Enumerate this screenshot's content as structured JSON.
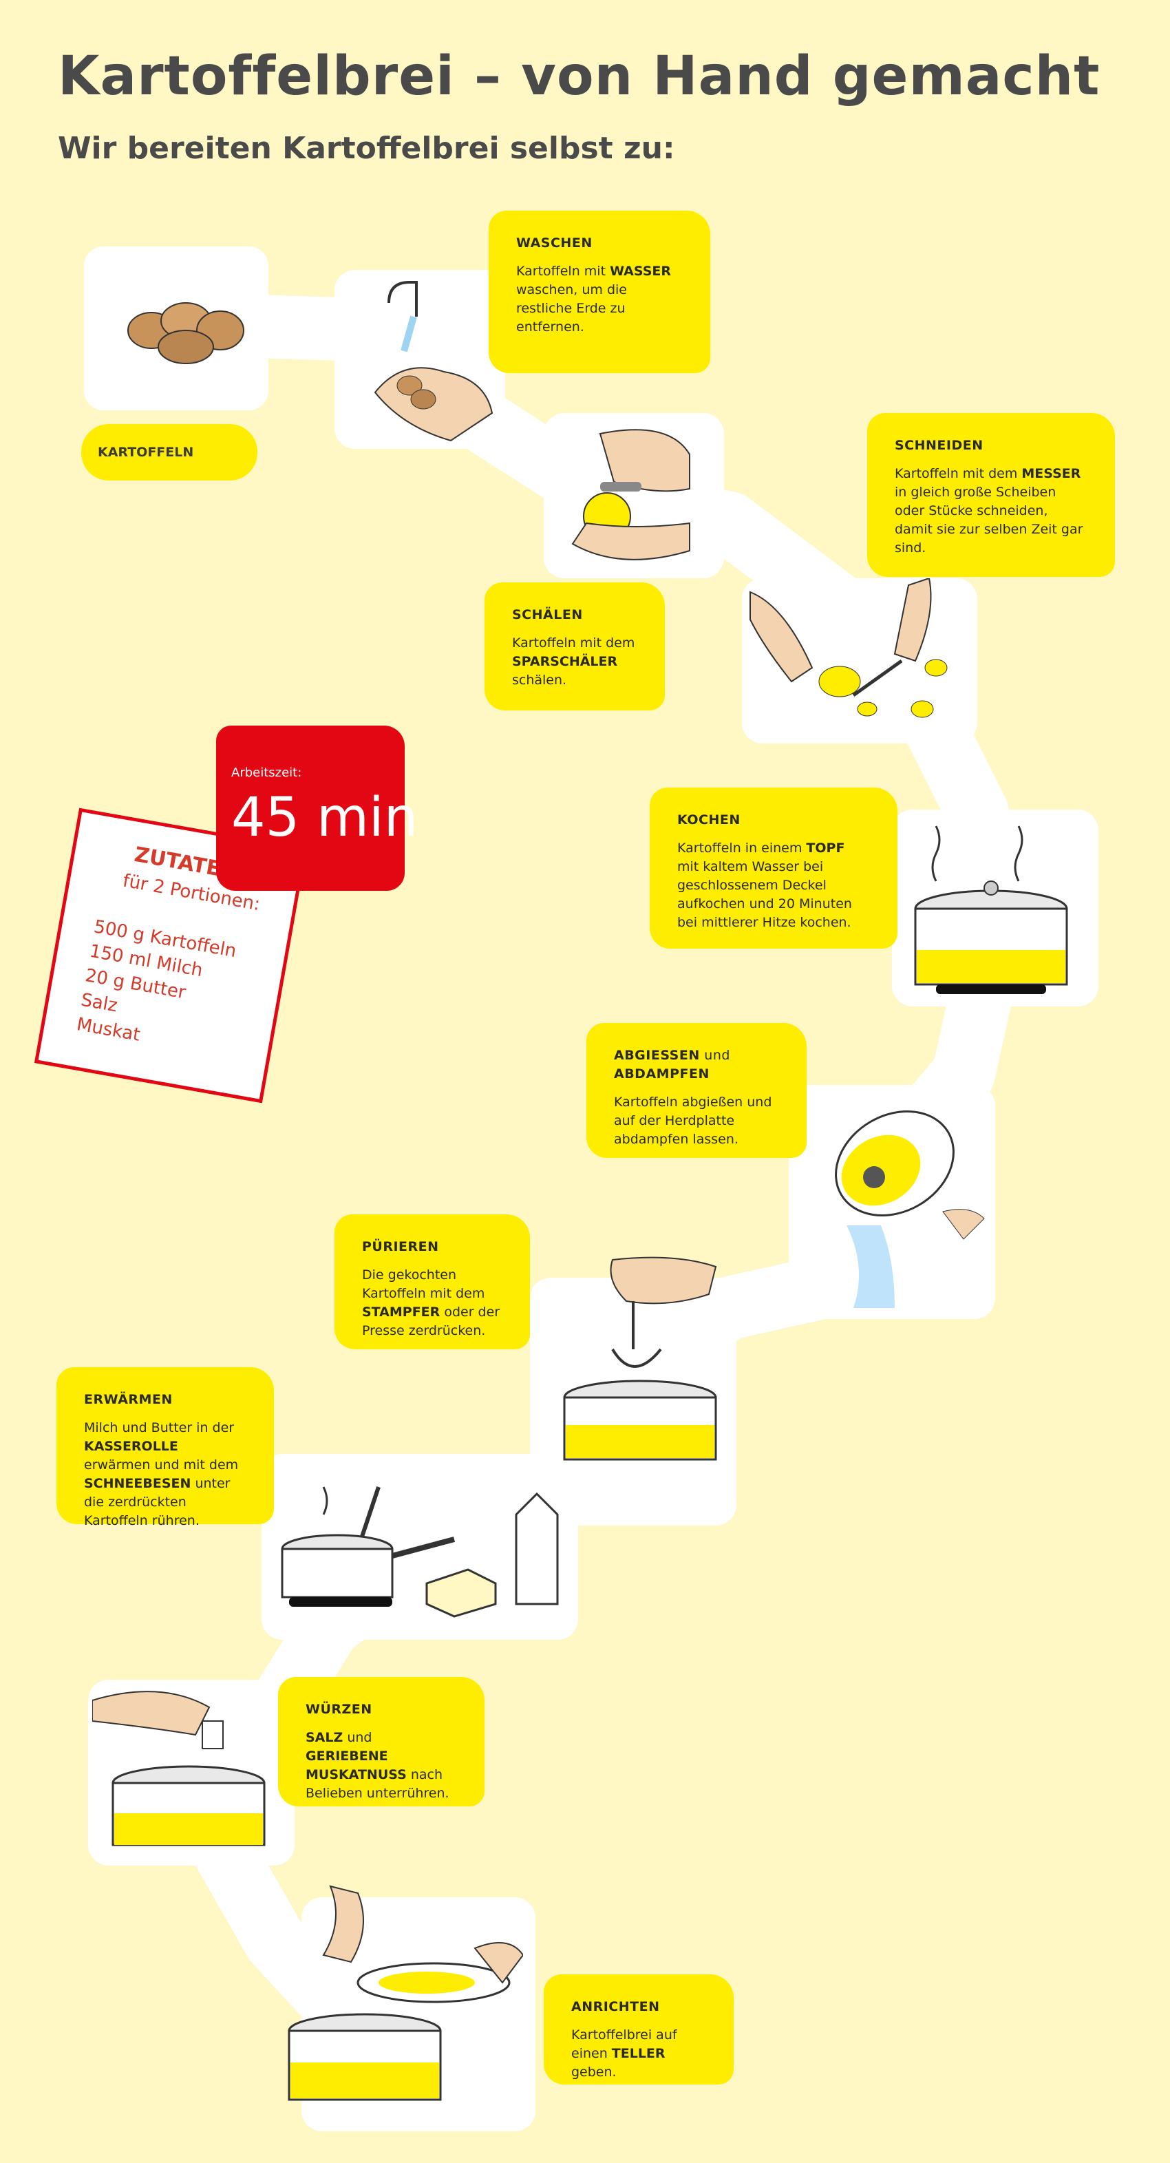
{
  "title": "Kartoffelbrei – von Hand gemacht",
  "subtitle": "Wir bereiten Kartoffelbrei selbst zu:",
  "colors": {
    "background": "#fff7c4",
    "accent": "#ffed00",
    "badge": "#e30613",
    "path": "#ffffff"
  },
  "start_label": "KARTOFFELN",
  "worktime": {
    "label": "Arbeitszeit:",
    "value": "45 min"
  },
  "ingredients": {
    "heading": "ZUTATEN",
    "subheading": "für 2 Portionen:",
    "items": [
      "500 g Kartoffeln",
      "150 ml Milch",
      "20 g Butter",
      "Salz",
      "Muskat"
    ]
  },
  "steps": {
    "waschen": {
      "title": "WASCHEN",
      "t1": "Kartoffeln mit ",
      "b1": "WASSER",
      "t2": " waschen, um die restliche Erde zu entfernen."
    },
    "schaelen": {
      "title": "SCHÄLEN",
      "t1": "Kartoffeln mit dem ",
      "b1": "SPARSCHÄLER",
      "t2": " schälen."
    },
    "schneiden": {
      "title": "SCHNEIDEN",
      "t1": "Kartoffeln mit dem ",
      "b1": "MESSER",
      "t2": " in gleich große Scheiben oder Stücke schneiden, damit sie zur selben Zeit gar sind."
    },
    "kochen": {
      "title": "KOCHEN",
      "t1": "Kartoffeln in einem ",
      "b1": "TOPF",
      "t2": " mit kaltem Wasser bei geschlossenem Deckel aufkochen und 20 Minuten bei mittlerer Hitze kochen."
    },
    "abgiessen": {
      "title_a": "ABGIESSEN",
      "title_mid": " und ",
      "title_b": "ABDAMPFEN",
      "t1": "Kartoffeln abgießen und auf der Herdplatte abdampfen lassen."
    },
    "puerieren": {
      "title": "PÜRIEREN",
      "t1": "Die gekochten Kartoffeln mit dem ",
      "b1": "STAMPFER",
      "t2": " oder der Presse zerdrücken."
    },
    "erwaermen": {
      "title": "ERWÄRMEN",
      "t1": "Milch und Butter in der ",
      "b1": "KASSEROLLE",
      "t2": " erwärmen und mit dem ",
      "b2": "SCHNEEBESEN",
      "t3": " unter die zerdrückten Kartoffeln rühren."
    },
    "wuerzen": {
      "title": "WÜRZEN",
      "b1": "SALZ",
      "t1": " und ",
      "b2": "GERIEBENE MUSKATNUSS",
      "t2": " nach Belieben unterrühren."
    },
    "anrichten": {
      "title": "ANRICHTEN",
      "t1": "Kartoffelbrei auf einen ",
      "b1": "TELLER",
      "t2": " geben."
    }
  },
  "icons": [
    "potatoes-icon",
    "washing-hands-icon",
    "peeler-icon",
    "knife-cutting-icon",
    "boiling-pot-icon",
    "draining-pot-icon",
    "masher-pot-icon",
    "saucepan-whisk-icon",
    "butter-icon",
    "milk-carton-icon",
    "salting-pot-icon",
    "plate-serving-icon"
  ]
}
